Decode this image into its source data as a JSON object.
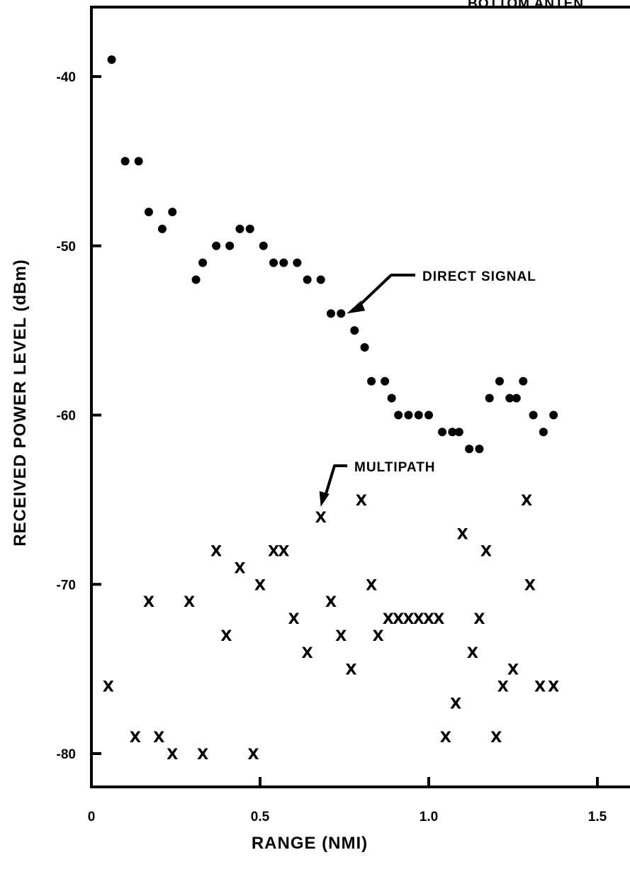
{
  "chart_data": {
    "type": "scatter",
    "title": "BOTTOM ANTEN",
    "xlabel": "RANGE (NMI)",
    "ylabel": "RECEIVED POWER LEVEL (dBm)",
    "xlim": [
      0,
      1.55
    ],
    "ylim": [
      -82,
      -36
    ],
    "xticks": [
      0,
      0.5,
      1.0,
      1.5
    ],
    "xtick_labels": [
      "0",
      "0.5",
      "1.0",
      "1.5"
    ],
    "yticks": [
      -40,
      -50,
      -60,
      -70,
      -80
    ],
    "ytick_labels": [
      "-40",
      "-50",
      "-60",
      "-70",
      "-80"
    ],
    "grid": false,
    "series": [
      {
        "name": "DIRECT SIGNAL",
        "marker": "dot",
        "points": [
          [
            0.06,
            -39
          ],
          [
            0.1,
            -45
          ],
          [
            0.14,
            -45
          ],
          [
            0.17,
            -48
          ],
          [
            0.21,
            -49
          ],
          [
            0.24,
            -48
          ],
          [
            0.31,
            -52
          ],
          [
            0.33,
            -51
          ],
          [
            0.37,
            -50
          ],
          [
            0.41,
            -50
          ],
          [
            0.44,
            -49
          ],
          [
            0.47,
            -49
          ],
          [
            0.51,
            -50
          ],
          [
            0.54,
            -51
          ],
          [
            0.57,
            -51
          ],
          [
            0.61,
            -51
          ],
          [
            0.64,
            -52
          ],
          [
            0.68,
            -52
          ],
          [
            0.71,
            -54
          ],
          [
            0.74,
            -54
          ],
          [
            0.78,
            -55
          ],
          [
            0.81,
            -56
          ],
          [
            0.83,
            -58
          ],
          [
            0.87,
            -58
          ],
          [
            0.89,
            -59
          ],
          [
            0.91,
            -60
          ],
          [
            0.94,
            -60
          ],
          [
            0.97,
            -60
          ],
          [
            1.0,
            -60
          ],
          [
            1.04,
            -61
          ],
          [
            1.07,
            -61
          ],
          [
            1.09,
            -61
          ],
          [
            1.12,
            -62
          ],
          [
            1.15,
            -62
          ],
          [
            1.18,
            -59
          ],
          [
            1.21,
            -58
          ],
          [
            1.24,
            -59
          ],
          [
            1.26,
            -59
          ],
          [
            1.28,
            -58
          ],
          [
            1.31,
            -60
          ],
          [
            1.34,
            -61
          ],
          [
            1.37,
            -60
          ]
        ]
      },
      {
        "name": "MULTIPATH",
        "marker": "x",
        "points": [
          [
            0.05,
            -76
          ],
          [
            0.13,
            -79
          ],
          [
            0.17,
            -71
          ],
          [
            0.2,
            -79
          ],
          [
            0.24,
            -80
          ],
          [
            0.29,
            -71
          ],
          [
            0.33,
            -80
          ],
          [
            0.37,
            -68
          ],
          [
            0.4,
            -73
          ],
          [
            0.44,
            -69
          ],
          [
            0.48,
            -80
          ],
          [
            0.5,
            -70
          ],
          [
            0.54,
            -68
          ],
          [
            0.57,
            -68
          ],
          [
            0.6,
            -72
          ],
          [
            0.64,
            -74
          ],
          [
            0.68,
            -66
          ],
          [
            0.71,
            -71
          ],
          [
            0.74,
            -73
          ],
          [
            0.77,
            -75
          ],
          [
            0.8,
            -65
          ],
          [
            0.83,
            -70
          ],
          [
            0.85,
            -73
          ],
          [
            0.88,
            -72
          ],
          [
            0.91,
            -72
          ],
          [
            0.94,
            -72
          ],
          [
            0.97,
            -72
          ],
          [
            1.0,
            -72
          ],
          [
            1.03,
            -72
          ],
          [
            1.05,
            -79
          ],
          [
            1.08,
            -77
          ],
          [
            1.1,
            -67
          ],
          [
            1.13,
            -74
          ],
          [
            1.15,
            -72
          ],
          [
            1.17,
            -68
          ],
          [
            1.2,
            -79
          ],
          [
            1.22,
            -76
          ],
          [
            1.25,
            -75
          ],
          [
            1.29,
            -65
          ],
          [
            1.3,
            -70
          ],
          [
            1.33,
            -76
          ],
          [
            1.37,
            -76
          ]
        ]
      }
    ],
    "annotations": [
      {
        "text": "DIRECT SIGNAL",
        "points_to": [
          0.74,
          -54
        ]
      },
      {
        "text": "MULTIPATH",
        "points_to": [
          0.68,
          -66
        ]
      }
    ]
  }
}
